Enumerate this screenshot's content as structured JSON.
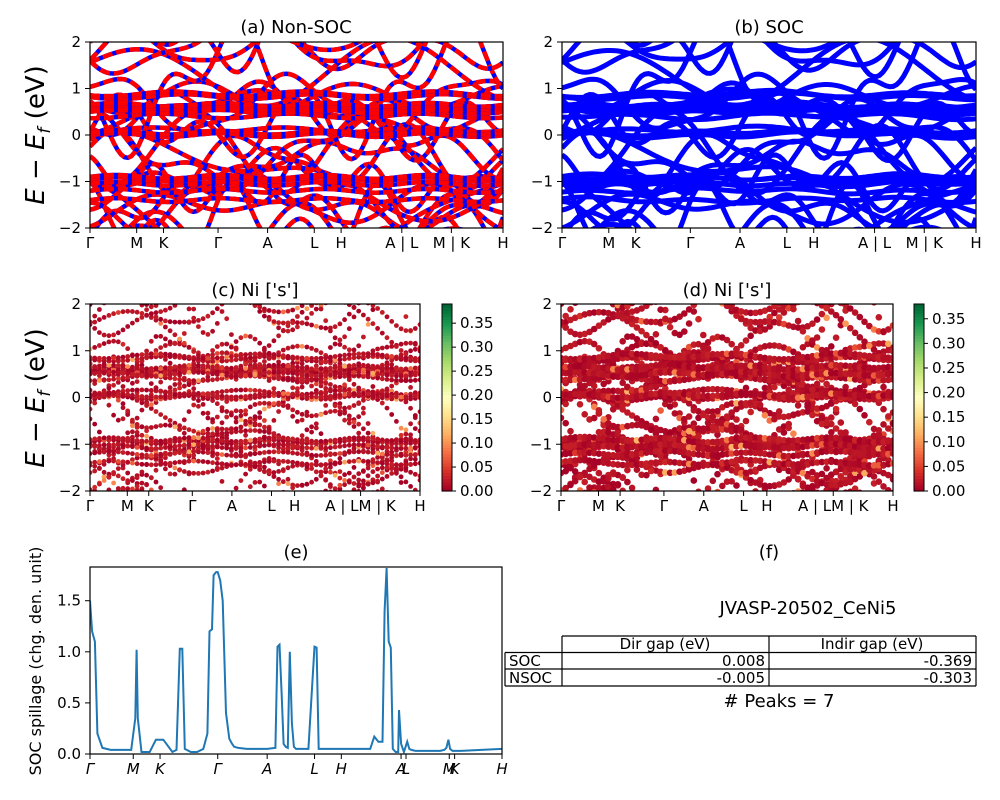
{
  "figure_title": "JVASP-20502_CeNi5",
  "panels": {
    "a": {
      "title": "(a) Non-SOC"
    },
    "b": {
      "title": "(b) SOC"
    },
    "c": {
      "title": "(c)  Ni ['s']"
    },
    "d": {
      "title": "(d) Ni ['s']"
    },
    "e": {
      "title": "(e)"
    },
    "f": {
      "title": "(f)"
    }
  },
  "band_ylabel": "E − E",
  "band_ylabel_sub": "f",
  "band_ylabel_unit": " (eV)",
  "spillage_ylabel": "SOC spillage (chg. den. unit)",
  "table": {
    "headers": [
      "",
      "Dir gap (eV)",
      "Indir gap (eV)"
    ],
    "rows": [
      {
        "label": "SOC",
        "dir": "0.008",
        "indir": "-0.369"
      },
      {
        "label": "NSOC",
        "dir": "-0.005",
        "indir": "-0.303"
      }
    ],
    "peaks_text": "# Peaks = 7"
  },
  "colors": {
    "nonsoc_primary": "#ff0000",
    "nonsoc_secondary": "#0000ff",
    "soc": "#0000ff",
    "spillage_line": "#1f77b4",
    "cmap": [
      "#a50026",
      "#d73027",
      "#f46d43",
      "#fdae61",
      "#fee08b",
      "#ffffbf",
      "#d9ef8b",
      "#a6d96a",
      "#66bd63",
      "#1a9850",
      "#006837"
    ]
  },
  "chart_data": [
    {
      "type": "line",
      "id": "a",
      "title": "(a) Non-SOC",
      "ylim": [
        -2,
        2
      ],
      "yticks": [
        -2,
        -1,
        0,
        1,
        2
      ],
      "kpath_labels": [
        {
          "label": "Γ",
          "k": 0.0
        },
        {
          "label": "M",
          "k": 0.113
        },
        {
          "label": "K",
          "k": 0.178
        },
        {
          "label": "Γ",
          "k": 0.31
        },
        {
          "label": "A",
          "k": 0.43
        },
        {
          "label": "L",
          "k": 0.543
        },
        {
          "label": "H",
          "k": 0.608
        },
        {
          "label": "A | L",
          "k": 0.755
        },
        {
          "label": "M | K",
          "k": 0.875
        },
        {
          "label": "H",
          "k": 1.0
        }
      ]
    },
    {
      "type": "line",
      "id": "b",
      "title": "(b) SOC",
      "ylim": [
        -2,
        2
      ],
      "yticks": [
        -2,
        -1,
        0,
        1,
        2
      ],
      "kpath_labels": [
        {
          "label": "Γ",
          "k": 0.0
        },
        {
          "label": "M",
          "k": 0.113
        },
        {
          "label": "K",
          "k": 0.178
        },
        {
          "label": "Γ",
          "k": 0.31
        },
        {
          "label": "A",
          "k": 0.43
        },
        {
          "label": "L",
          "k": 0.543
        },
        {
          "label": "H",
          "k": 0.608
        },
        {
          "label": "A | L",
          "k": 0.755
        },
        {
          "label": "M | K",
          "k": 0.875
        },
        {
          "label": "H",
          "k": 1.0
        }
      ]
    },
    {
      "type": "scatter",
      "id": "c",
      "title": "(c)  Ni ['s']",
      "ylim": [
        -2,
        2
      ],
      "yticks": [
        -2,
        -1,
        0,
        1,
        2
      ],
      "colorbar_ticks": [
        "0.00",
        "0.05",
        "0.10",
        "0.15",
        "0.20",
        "0.25",
        "0.30",
        "0.35"
      ],
      "colorbar_range": [
        0.0,
        0.39
      ],
      "kpath_labels": [
        {
          "label": "Γ",
          "k": 0.0
        },
        {
          "label": "M",
          "k": 0.113
        },
        {
          "label": "K",
          "k": 0.178
        },
        {
          "label": "Γ",
          "k": 0.31
        },
        {
          "label": "A",
          "k": 0.43
        },
        {
          "label": "L",
          "k": 0.55
        },
        {
          "label": "H",
          "k": 0.62
        },
        {
          "label": "A | LM | K",
          "k": 0.82
        },
        {
          "label": "H",
          "k": 1.0
        }
      ]
    },
    {
      "type": "scatter",
      "id": "d",
      "title": "(d) Ni ['s']",
      "ylim": [
        -2,
        2
      ],
      "yticks": [
        -2,
        -1,
        0,
        1,
        2
      ],
      "colorbar_ticks": [
        "0.00",
        "0.05",
        "0.10",
        "0.15",
        "0.20",
        "0.25",
        "0.30",
        "0.35"
      ],
      "colorbar_range": [
        0.0,
        0.38
      ],
      "kpath_labels": [
        {
          "label": "Γ",
          "k": 0.0
        },
        {
          "label": "M",
          "k": 0.113
        },
        {
          "label": "K",
          "k": 0.178
        },
        {
          "label": "Γ",
          "k": 0.31
        },
        {
          "label": "A",
          "k": 0.43
        },
        {
          "label": "L",
          "k": 0.55
        },
        {
          "label": "H",
          "k": 0.62
        },
        {
          "label": "A | LM | K",
          "k": 0.82
        },
        {
          "label": "H",
          "k": 1.0
        }
      ]
    },
    {
      "type": "line",
      "id": "e",
      "title": "(e)",
      "ylabel": "SOC spillage (chg. den. unit)",
      "ylim": [
        0,
        1.83
      ],
      "yticks": [
        0.0,
        0.5,
        1.0,
        1.5
      ],
      "ytick_labels": [
        "0.0",
        "0.5",
        "1.0",
        "1.5"
      ],
      "kpath_labels": [
        {
          "label": "Γ",
          "k": 0.0
        },
        {
          "label": "M",
          "k": 0.105
        },
        {
          "label": "K",
          "k": 0.17
        },
        {
          "label": "Γ",
          "k": 0.31
        },
        {
          "label": "A",
          "k": 0.43
        },
        {
          "label": "L",
          "k": 0.545
        },
        {
          "label": "H",
          "k": 0.61
        },
        {
          "label": "A",
          "k": 0.755
        },
        {
          "label": "L",
          "k": 0.767
        },
        {
          "label": "M",
          "k": 0.872
        },
        {
          "label": "K",
          "k": 0.885
        },
        {
          "label": "H",
          "k": 1.0
        }
      ],
      "series": [
        {
          "x": [
            0.0,
            0.005,
            0.012,
            0.018,
            0.03,
            0.05,
            0.08,
            0.1,
            0.11,
            0.113,
            0.116,
            0.125,
            0.145,
            0.16,
            0.17,
            0.178,
            0.2,
            0.21,
            0.218,
            0.224,
            0.23,
            0.245,
            0.26,
            0.275,
            0.285,
            0.29,
            0.296,
            0.3,
            0.306,
            0.31,
            0.316,
            0.322,
            0.33,
            0.338,
            0.345,
            0.35,
            0.36,
            0.38,
            0.4,
            0.43,
            0.45,
            0.455,
            0.46,
            0.465,
            0.47,
            0.475,
            0.48,
            0.485,
            0.49,
            0.495,
            0.5,
            0.505,
            0.515,
            0.53,
            0.545,
            0.55,
            0.555,
            0.56,
            0.57,
            0.6,
            0.64,
            0.66,
            0.68,
            0.69,
            0.7,
            0.71,
            0.715,
            0.72,
            0.725,
            0.73,
            0.735,
            0.742,
            0.748,
            0.75,
            0.755,
            0.762,
            0.77,
            0.775,
            0.78,
            0.79,
            0.82,
            0.85,
            0.86,
            0.865,
            0.87,
            0.874,
            0.88,
            0.9,
            0.95,
            1.0
          ],
          "y": [
            1.5,
            1.2,
            1.1,
            0.2,
            0.06,
            0.04,
            0.04,
            0.04,
            0.35,
            1.02,
            0.35,
            0.02,
            0.02,
            0.14,
            0.14,
            0.14,
            0.02,
            0.04,
            1.03,
            1.03,
            0.05,
            0.02,
            0.02,
            0.05,
            0.2,
            1.2,
            1.22,
            1.75,
            1.78,
            1.78,
            1.7,
            1.5,
            0.4,
            0.15,
            0.1,
            0.07,
            0.06,
            0.05,
            0.05,
            0.05,
            0.06,
            1.05,
            1.07,
            0.6,
            0.1,
            0.07,
            0.06,
            1.0,
            0.3,
            0.07,
            0.05,
            0.05,
            0.05,
            0.05,
            1.05,
            1.04,
            0.05,
            0.05,
            0.05,
            0.05,
            0.05,
            0.05,
            0.05,
            0.17,
            0.12,
            0.12,
            1.4,
            1.82,
            1.1,
            1.04,
            0.05,
            0.02,
            0.02,
            0.43,
            0.1,
            0.02,
            0.12,
            0.05,
            0.04,
            0.03,
            0.03,
            0.03,
            0.04,
            0.06,
            0.14,
            0.05,
            0.03,
            0.03,
            0.04,
            0.05
          ]
        }
      ]
    }
  ]
}
